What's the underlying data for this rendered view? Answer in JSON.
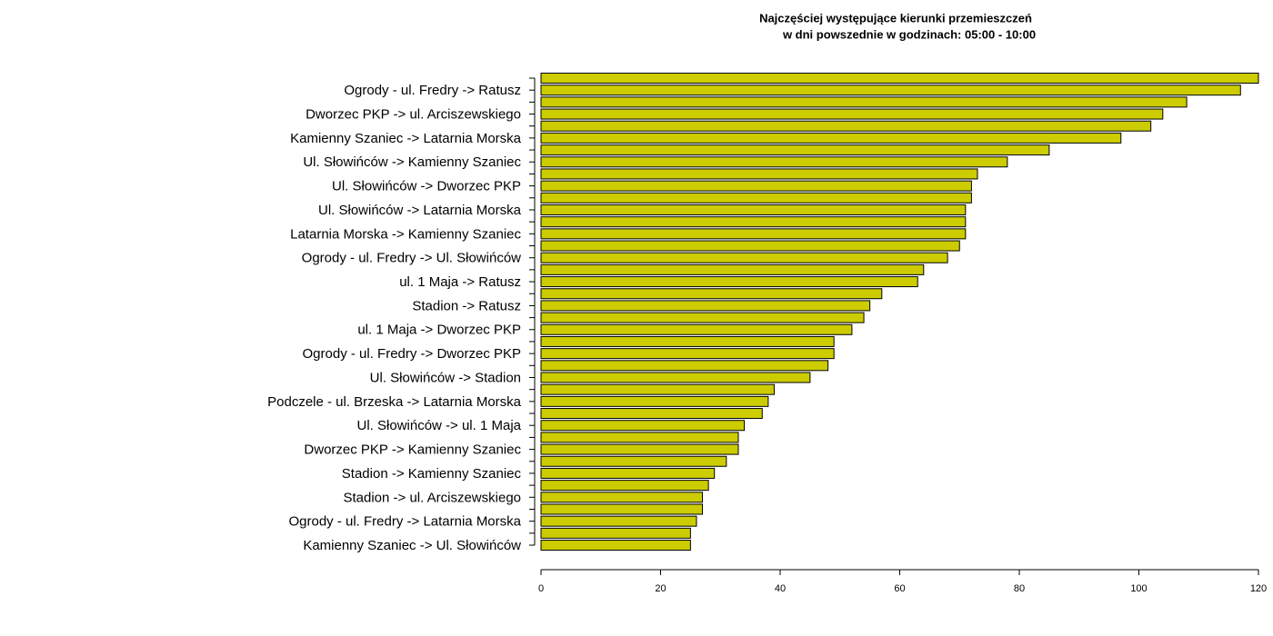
{
  "chart_data": {
    "type": "barh",
    "title": "Najczęściej występujące kierunki przemieszczeń",
    "subtitle": "w dni powszednie w godzinach: 05:00 - 10:00",
    "categories": [
      null,
      "Ogrody - ul. Fredry -> Ratusz",
      null,
      "Dworzec PKP -> ul. Arciszewskiego",
      null,
      "Kamienny Szaniec -> Latarnia Morska",
      null,
      "Ul. Słowińców -> Kamienny Szaniec",
      null,
      "Ul. Słowińców -> Dworzec PKP",
      null,
      "Ul. Słowińców -> Latarnia Morska",
      null,
      "Latarnia Morska -> Kamienny Szaniec",
      null,
      "Ogrody - ul. Fredry -> Ul. Słowińców",
      null,
      "ul. 1 Maja -> Ratusz",
      null,
      "Stadion -> Ratusz",
      null,
      "ul. 1 Maja -> Dworzec PKP",
      null,
      "Ogrody - ul. Fredry -> Dworzec PKP",
      null,
      "Ul. Słowińców -> Stadion",
      null,
      "Podczele - ul. Brzeska -> Latarnia Morska",
      null,
      "Ul. Słowińców -> ul. 1 Maja",
      null,
      "Dworzec PKP -> Kamienny Szaniec",
      null,
      "Stadion -> Kamienny Szaniec",
      null,
      "Stadion -> ul. Arciszewskiego",
      null,
      "Ogrody - ul. Fredry -> Latarnia Morska",
      null,
      "Kamienny Szaniec -> Ul. Słowińców"
    ],
    "values": [
      120,
      117,
      108,
      104,
      102,
      97,
      85,
      78,
      73,
      72,
      72,
      71,
      71,
      71,
      70,
      68,
      64,
      63,
      57,
      55,
      54,
      52,
      49,
      49,
      48,
      45,
      39,
      38,
      37,
      34,
      33,
      33,
      31,
      29,
      28,
      27,
      27,
      26,
      25,
      25
    ],
    "color": "#cccc00",
    "xlim": [
      0,
      120
    ],
    "xticks": [
      0,
      20,
      40,
      60,
      80,
      100,
      120
    ]
  }
}
